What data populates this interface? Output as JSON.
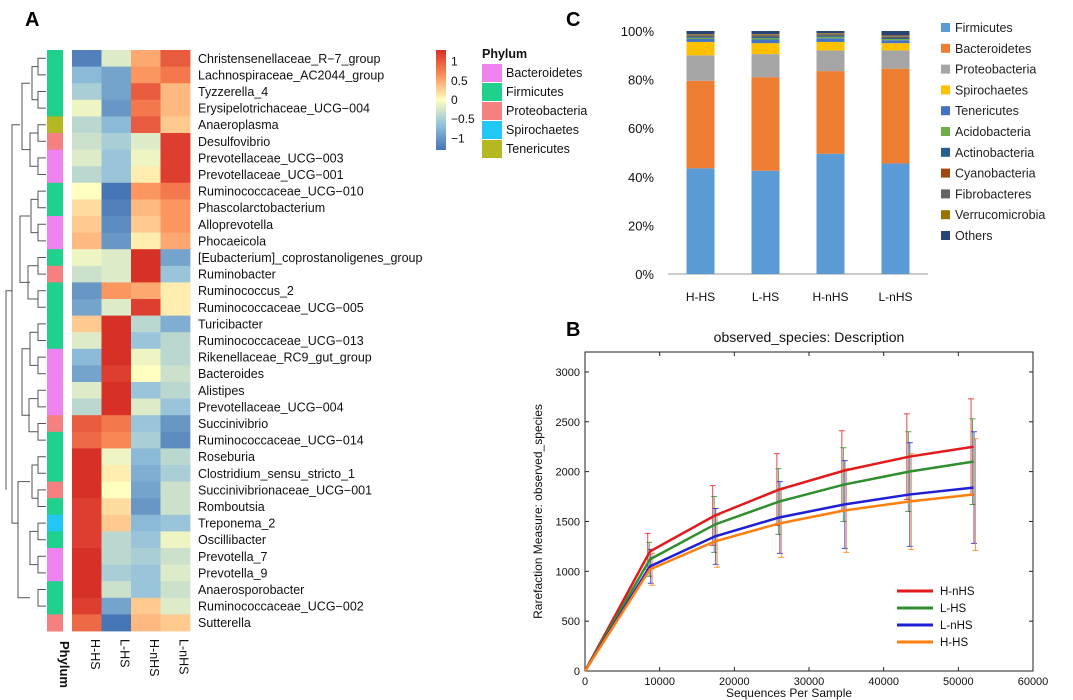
{
  "panel_labels": {
    "a": "A",
    "b": "B",
    "c": "C"
  },
  "chart_data": [
    {
      "type": "heatmap",
      "panel": "A",
      "columns": [
        "H-HS",
        "L-HS",
        "H-nHS",
        "L-nHS"
      ],
      "annotation_label": "Phylum",
      "legend_title": "Phylum",
      "scale_ticks": [
        "1",
        "0.5",
        "0",
        "−0.5",
        "−1"
      ],
      "scale_tick_values": [
        1,
        0.5,
        0,
        -0.5,
        -1
      ],
      "scale_range": [
        -1.3,
        1.3
      ],
      "phyla": [
        {
          "name": "Bacteroidetes",
          "color": "#ee82ee"
        },
        {
          "name": "Firmicutes",
          "color": "#1fd18c"
        },
        {
          "name": "Proteobacteria",
          "color": "#f58080"
        },
        {
          "name": "Spirochaetes",
          "color": "#21c7f5"
        },
        {
          "name": "Tenericutes",
          "color": "#b5b820"
        }
      ],
      "rows": [
        {
          "name": "Christensenellaceae_R−7_group",
          "phylum": "Firmicutes",
          "values": [
            -1.2,
            -0.2,
            0.5,
            1.0
          ]
        },
        {
          "name": "Lachnospiraceae_AC2044_group",
          "phylum": "Firmicutes",
          "values": [
            -0.7,
            -0.9,
            0.6,
            0.8
          ]
        },
        {
          "name": "Tyzzerella_4",
          "phylum": "Firmicutes",
          "values": [
            -0.5,
            -0.9,
            1.0,
            0.4
          ]
        },
        {
          "name": "Erysipelotrichaceae_UCG−004",
          "phylum": "Firmicutes",
          "values": [
            -0.1,
            -1.0,
            0.8,
            0.4
          ]
        },
        {
          "name": "Anaeroplasma",
          "phylum": "Tenericutes",
          "values": [
            -0.4,
            -0.7,
            1.0,
            0.3
          ]
        },
        {
          "name": "Desulfovibrio",
          "phylum": "Proteobacteria",
          "values": [
            -0.3,
            -0.5,
            -0.2,
            1.2
          ]
        },
        {
          "name": "Prevotellaceae_UCG−003",
          "phylum": "Bacteroidetes",
          "values": [
            -0.2,
            -0.6,
            -0.1,
            1.2
          ]
        },
        {
          "name": "Prevotellaceae_UCG−001",
          "phylum": "Bacteroidetes",
          "values": [
            -0.4,
            -0.6,
            0.1,
            1.2
          ]
        },
        {
          "name": "Ruminococcaceae_UCG−010",
          "phylum": "Firmicutes",
          "values": [
            0.0,
            -1.3,
            0.6,
            0.8
          ]
        },
        {
          "name": "Phascolarctobacterium",
          "phylum": "Firmicutes",
          "values": [
            0.2,
            -1.2,
            0.4,
            0.6
          ]
        },
        {
          "name": "Alloprevotella",
          "phylum": "Bacteroidetes",
          "values": [
            0.3,
            -1.1,
            0.3,
            0.6
          ]
        },
        {
          "name": "Phocaeicola",
          "phylum": "Bacteroidetes",
          "values": [
            0.4,
            -1.0,
            0.1,
            0.5
          ]
        },
        {
          "name": "[Eubacterium]_coprostanoligenes_group",
          "phylum": "Firmicutes",
          "values": [
            -0.1,
            -0.2,
            1.3,
            -0.9
          ]
        },
        {
          "name": "Ruminobacter",
          "phylum": "Proteobacteria",
          "values": [
            -0.3,
            -0.2,
            1.3,
            -0.6
          ]
        },
        {
          "name": "Ruminococcus_2",
          "phylum": "Firmicutes",
          "values": [
            -1.0,
            0.6,
            0.5,
            0.1
          ]
        },
        {
          "name": "Ruminococcaceae_UCG−005",
          "phylum": "Firmicutes",
          "values": [
            -0.9,
            -0.2,
            1.2,
            0.1
          ]
        },
        {
          "name": "Turicibacter",
          "phylum": "Firmicutes",
          "values": [
            0.3,
            1.3,
            -0.4,
            -0.8
          ]
        },
        {
          "name": "Ruminococcaceae_UCG−013",
          "phylum": "Firmicutes",
          "values": [
            -0.2,
            1.3,
            -0.6,
            -0.4
          ]
        },
        {
          "name": "Rikenellaceae_RC9_gut_group",
          "phylum": "Bacteroidetes",
          "values": [
            -0.7,
            1.3,
            -0.1,
            -0.4
          ]
        },
        {
          "name": "Bacteroides",
          "phylum": "Bacteroidetes",
          "values": [
            -0.9,
            1.2,
            0.0,
            -0.3
          ]
        },
        {
          "name": "Alistipes",
          "phylum": "Bacteroidetes",
          "values": [
            -0.2,
            1.3,
            -0.6,
            -0.4
          ]
        },
        {
          "name": "Prevotellaceae_UCG−004",
          "phylum": "Bacteroidetes",
          "values": [
            -0.4,
            1.3,
            -0.2,
            -0.6
          ]
        },
        {
          "name": "Succinivibrio",
          "phylum": "Proteobacteria",
          "values": [
            1.0,
            0.8,
            -0.6,
            -1.0
          ]
        },
        {
          "name": "Ruminococcaceae_UCG−014",
          "phylum": "Firmicutes",
          "values": [
            0.9,
            0.7,
            -0.5,
            -1.1
          ]
        },
        {
          "name": "Roseburia",
          "phylum": "Firmicutes",
          "values": [
            1.3,
            -0.1,
            -0.7,
            -0.4
          ]
        },
        {
          "name": "Clostridium_sensu_stricto_1",
          "phylum": "Firmicutes",
          "values": [
            1.3,
            0.1,
            -0.8,
            -0.5
          ]
        },
        {
          "name": "Succinivibrionaceae_UCG−001",
          "phylum": "Proteobacteria",
          "values": [
            1.3,
            0.0,
            -0.9,
            -0.3
          ]
        },
        {
          "name": "Romboutsia",
          "phylum": "Firmicutes",
          "values": [
            1.2,
            0.2,
            -1.0,
            -0.3
          ]
        },
        {
          "name": "Treponema_2",
          "phylum": "Spirochaetes",
          "values": [
            1.2,
            0.3,
            -0.7,
            -0.6
          ]
        },
        {
          "name": "Oscillibacter",
          "phylum": "Firmicutes",
          "values": [
            1.2,
            -0.4,
            -0.6,
            -0.1
          ]
        },
        {
          "name": "Prevotella_7",
          "phylum": "Bacteroidetes",
          "values": [
            1.3,
            -0.4,
            -0.5,
            -0.3
          ]
        },
        {
          "name": "Prevotella_9",
          "phylum": "Bacteroidetes",
          "values": [
            1.3,
            -0.5,
            -0.6,
            -0.2
          ]
        },
        {
          "name": "Anaerosporobacter",
          "phylum": "Firmicutes",
          "values": [
            1.3,
            -0.3,
            -0.6,
            -0.3
          ]
        },
        {
          "name": "Ruminococcaceae_UCG−002",
          "phylum": "Firmicutes",
          "values": [
            1.2,
            -0.9,
            0.3,
            -0.2
          ]
        },
        {
          "name": "Sutterella",
          "phylum": "Proteobacteria",
          "values": [
            0.9,
            -1.3,
            0.4,
            0.3
          ]
        }
      ]
    },
    {
      "type": "bar",
      "stacked": true,
      "panel": "C",
      "categories": [
        "H-HS",
        "L-HS",
        "H-nHS",
        "L-nHS"
      ],
      "ylim": [
        0,
        100
      ],
      "yticks": [
        0,
        20,
        40,
        60,
        80,
        100
      ],
      "ytick_labels": [
        "0%",
        "20%",
        "40%",
        "60%",
        "80%",
        "100%"
      ],
      "legend_position": "right",
      "series": [
        {
          "name": "Firmicutes",
          "color": "#5b9bd5",
          "values": [
            43.5,
            42.5,
            49.5,
            45.5
          ]
        },
        {
          "name": "Bacteroidetes",
          "color": "#ed7d31",
          "values": [
            36,
            38.5,
            34,
            39
          ]
        },
        {
          "name": "Proteobacteria",
          "color": "#a5a5a5",
          "values": [
            10.5,
            9.5,
            8.5,
            7.5
          ]
        },
        {
          "name": "Spirochaetes",
          "color": "#ffc000",
          "values": [
            5.5,
            4.5,
            3.5,
            3
          ]
        },
        {
          "name": "Tenericutes",
          "color": "#4472c4",
          "values": [
            1.2,
            1.5,
            1.5,
            1.2
          ]
        },
        {
          "name": "Acidobacteria",
          "color": "#70ad47",
          "values": [
            0.5,
            0.6,
            0.6,
            0.5
          ]
        },
        {
          "name": "Actinobacteria",
          "color": "#255e91",
          "values": [
            0.6,
            0.7,
            0.6,
            0.6
          ]
        },
        {
          "name": "Cyanobacteria",
          "color": "#9e480e",
          "values": [
            0.3,
            0.3,
            0.3,
            0.3
          ]
        },
        {
          "name": "Fibrobacteres",
          "color": "#636363",
          "values": [
            0.3,
            0.3,
            0.3,
            0.3
          ]
        },
        {
          "name": "Verrucomicrobia",
          "color": "#997300",
          "values": [
            0.3,
            0.3,
            0.3,
            0.3
          ]
        },
        {
          "name": "Others",
          "color": "#264478",
          "values": [
            1.3,
            1.3,
            0.9,
            1.8
          ]
        }
      ]
    },
    {
      "type": "line",
      "panel": "B",
      "title": "observed_species: Description",
      "xlabel": "Sequences Per Sample",
      "ylabel": "Rarefaction Measure: observed_species",
      "xlim": [
        0,
        60000
      ],
      "ylim": [
        0,
        3200
      ],
      "xticks": [
        0,
        10000,
        20000,
        30000,
        40000,
        50000,
        60000
      ],
      "yticks": [
        0,
        500,
        1000,
        1500,
        2000,
        2500,
        3000
      ],
      "legend_position": "lower-right",
      "x": [
        0,
        8700,
        17400,
        26000,
        34700,
        43400,
        52000
      ],
      "series": [
        {
          "name": "H-nHS",
          "color": "#e31a1c",
          "values": [
            0,
            1200,
            1560,
            1820,
            2010,
            2150,
            2250
          ],
          "error": [
            0,
            180,
            300,
            360,
            400,
            430,
            480
          ]
        },
        {
          "name": "L-HS",
          "color": "#2f8f2f",
          "values": [
            0,
            1120,
            1470,
            1700,
            1870,
            2000,
            2100
          ],
          "error": [
            0,
            170,
            280,
            330,
            370,
            400,
            430
          ]
        },
        {
          "name": "L-nHS",
          "color": "#1f1fd6",
          "values": [
            0,
            1050,
            1350,
            1540,
            1670,
            1770,
            1840
          ],
          "error": [
            0,
            170,
            280,
            360,
            440,
            520,
            560
          ]
        },
        {
          "name": "H-HS",
          "color": "#ff7f0e",
          "values": [
            0,
            1020,
            1300,
            1480,
            1610,
            1700,
            1770
          ],
          "error": [
            0,
            160,
            260,
            340,
            420,
            480,
            560
          ]
        }
      ]
    }
  ]
}
